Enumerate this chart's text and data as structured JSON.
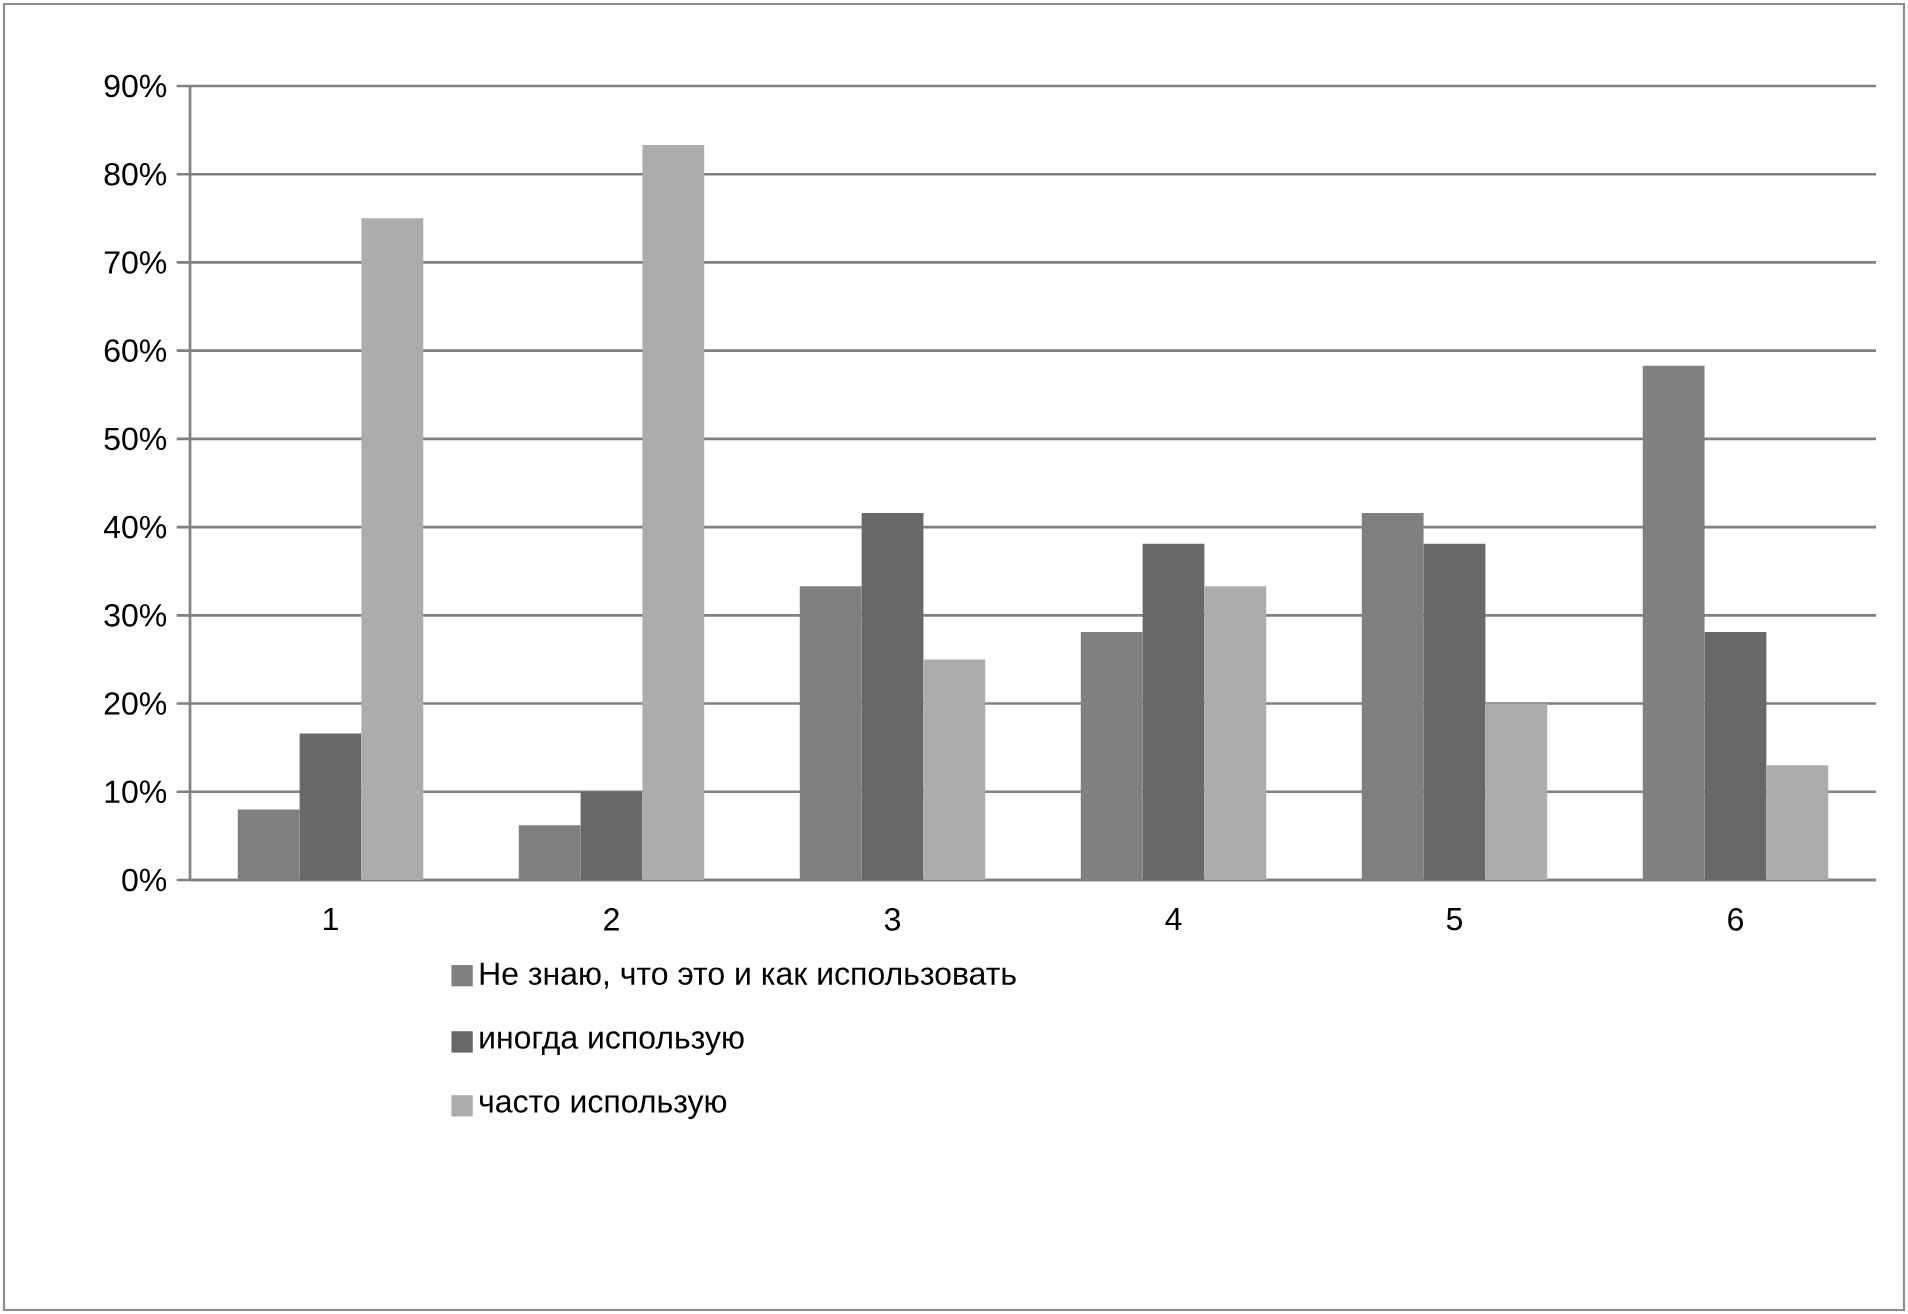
{
  "chart_data": {
    "type": "bar",
    "categories": [
      "1",
      "2",
      "3",
      "4",
      "5",
      "6"
    ],
    "series": [
      {
        "name": "Не знаю, что это и как использовать",
        "color": "#808080",
        "values": [
          8,
          6.2,
          33.3,
          28.1,
          41.6,
          58.3
        ]
      },
      {
        "name": "иногда использую",
        "color": "#686868",
        "values": [
          16.6,
          10,
          41.6,
          38.1,
          38.1,
          28.1
        ]
      },
      {
        "name": "часто использую",
        "color": "#acacac",
        "values": [
          75,
          83.3,
          25,
          33.3,
          20,
          13
        ]
      }
    ],
    "ylim": [
      0,
      90
    ],
    "yticks": [
      {
        "value": 0,
        "label": "0%"
      },
      {
        "value": 10,
        "label": "10%"
      },
      {
        "value": 20,
        "label": "20%"
      },
      {
        "value": 30,
        "label": "30%"
      },
      {
        "value": 40,
        "label": "40%"
      },
      {
        "value": 50,
        "label": "50%"
      },
      {
        "value": 60,
        "label": "60%"
      },
      {
        "value": 70,
        "label": "70%"
      },
      {
        "value": 80,
        "label": "80%"
      },
      {
        "value": 90,
        "label": "90%"
      }
    ],
    "grid": "y",
    "legend": "bottom"
  }
}
